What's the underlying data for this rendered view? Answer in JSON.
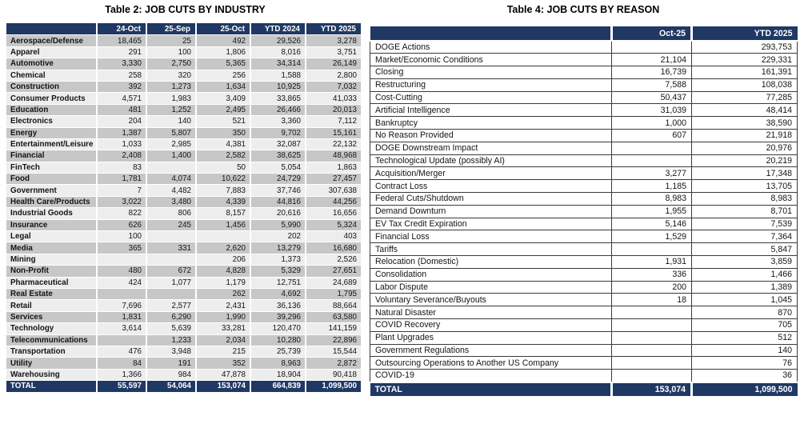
{
  "colors": {
    "header_bg": "#203864",
    "row_stripe_dark": "#c7c7c7",
    "row_stripe_light": "#ededed",
    "grid_line": "#3a3a3a"
  },
  "left_table": {
    "title": "Table 2: JOB CUTS BY INDUSTRY",
    "columns": [
      "",
      "24-Oct",
      "25-Sep",
      "25-Oct",
      "YTD 2024",
      "YTD 2025"
    ],
    "rows": [
      {
        "label": "Aerospace/Defense",
        "values": [
          "18,465",
          "25",
          "492",
          "29,526",
          "3,278"
        ]
      },
      {
        "label": "Apparel",
        "values": [
          "291",
          "100",
          "1,806",
          "8,016",
          "3,751"
        ]
      },
      {
        "label": "Automotive",
        "values": [
          "3,330",
          "2,750",
          "5,365",
          "34,314",
          "26,149"
        ]
      },
      {
        "label": "Chemical",
        "values": [
          "258",
          "320",
          "256",
          "1,588",
          "2,800"
        ]
      },
      {
        "label": "Construction",
        "values": [
          "392",
          "1,273",
          "1,634",
          "10,925",
          "7,032"
        ]
      },
      {
        "label": "Consumer Products",
        "values": [
          "4,571",
          "1,983",
          "3,409",
          "33,865",
          "41,033"
        ]
      },
      {
        "label": "Education",
        "values": [
          "481",
          "1,252",
          "2,495",
          "26,466",
          "20,013"
        ]
      },
      {
        "label": "Electronics",
        "values": [
          "204",
          "140",
          "521",
          "3,360",
          "7,112"
        ]
      },
      {
        "label": "Energy",
        "values": [
          "1,387",
          "5,807",
          "350",
          "9,702",
          "15,161"
        ]
      },
      {
        "label": "Entertainment/Leisure",
        "values": [
          "1,033",
          "2,985",
          "4,381",
          "32,087",
          "22,132"
        ]
      },
      {
        "label": "Financial",
        "values": [
          "2,408",
          "1,400",
          "2,582",
          "38,625",
          "48,968"
        ]
      },
      {
        "label": "FinTech",
        "values": [
          "83",
          "",
          "50",
          "5,054",
          "1,863"
        ]
      },
      {
        "label": "Food",
        "values": [
          "1,781",
          "4,074",
          "10,622",
          "24,729",
          "27,457"
        ]
      },
      {
        "label": "Government",
        "values": [
          "7",
          "4,482",
          "7,883",
          "37,746",
          "307,638"
        ]
      },
      {
        "label": "Health Care/Products",
        "values": [
          "3,022",
          "3,480",
          "4,339",
          "44,816",
          "44,256"
        ]
      },
      {
        "label": "Industrial Goods",
        "values": [
          "822",
          "806",
          "8,157",
          "20,616",
          "16,656"
        ]
      },
      {
        "label": "Insurance",
        "values": [
          "626",
          "245",
          "1,456",
          "5,990",
          "5,324"
        ]
      },
      {
        "label": "Legal",
        "values": [
          "100",
          "",
          "",
          "202",
          "403"
        ]
      },
      {
        "label": "Media",
        "values": [
          "365",
          "331",
          "2,620",
          "13,279",
          "16,680"
        ]
      },
      {
        "label": "Mining",
        "values": [
          "",
          "",
          "206",
          "1,373",
          "2,526"
        ]
      },
      {
        "label": "Non-Profit",
        "values": [
          "480",
          "672",
          "4,828",
          "5,329",
          "27,651"
        ]
      },
      {
        "label": "Pharmaceutical",
        "values": [
          "424",
          "1,077",
          "1,179",
          "12,751",
          "24,689"
        ]
      },
      {
        "label": "Real Estate",
        "values": [
          "",
          "",
          "262",
          "4,692",
          "1,795"
        ]
      },
      {
        "label": "Retail",
        "values": [
          "7,696",
          "2,577",
          "2,431",
          "36,136",
          "88,664"
        ]
      },
      {
        "label": "Services",
        "values": [
          "1,831",
          "6,290",
          "1,990",
          "39,296",
          "63,580"
        ]
      },
      {
        "label": "Technology",
        "values": [
          "3,614",
          "5,639",
          "33,281",
          "120,470",
          "141,159"
        ]
      },
      {
        "label": "Telecommunications",
        "values": [
          "",
          "1,233",
          "2,034",
          "10,280",
          "22,896"
        ]
      },
      {
        "label": "Transportation",
        "values": [
          "476",
          "3,948",
          "215",
          "25,739",
          "15,544"
        ]
      },
      {
        "label": "Utility",
        "values": [
          "84",
          "191",
          "352",
          "8,963",
          "2,872"
        ]
      },
      {
        "label": "Warehousing",
        "values": [
          "1,366",
          "984",
          "47,878",
          "18,904",
          "90,418"
        ]
      }
    ],
    "total": {
      "label": "TOTAL",
      "values": [
        "55,597",
        "54,064",
        "153,074",
        "664,839",
        "1,099,500"
      ]
    }
  },
  "right_table": {
    "title": "Table 4: JOB CUTS BY REASON",
    "columns": [
      "",
      "Oct-25",
      "YTD 2025"
    ],
    "rows": [
      {
        "label": "DOGE Actions",
        "values": [
          "",
          "293,753"
        ]
      },
      {
        "label": "Market/Economic Conditions",
        "values": [
          "21,104",
          "229,331"
        ]
      },
      {
        "label": "Closing",
        "values": [
          "16,739",
          "161,391"
        ]
      },
      {
        "label": "Restructuring",
        "values": [
          "7,588",
          "108,038"
        ]
      },
      {
        "label": "Cost-Cutting",
        "values": [
          "50,437",
          "77,285"
        ]
      },
      {
        "label": "Artificial Intelligence",
        "values": [
          "31,039",
          "48,414"
        ]
      },
      {
        "label": "Bankruptcy",
        "values": [
          "1,000",
          "38,590"
        ]
      },
      {
        "label": "No Reason Provided",
        "values": [
          "607",
          "21,918"
        ]
      },
      {
        "label": "DOGE Downstream Impact",
        "values": [
          "",
          "20,976"
        ]
      },
      {
        "label": "Technological Update (possibly AI)",
        "values": [
          "",
          "20,219"
        ]
      },
      {
        "label": "Acquisition/Merger",
        "values": [
          "3,277",
          "17,348"
        ]
      },
      {
        "label": "Contract Loss",
        "values": [
          "1,185",
          "13,705"
        ]
      },
      {
        "label": "Federal Cuts/Shutdown",
        "values": [
          "8,983",
          "8,983"
        ]
      },
      {
        "label": "Demand Downturn",
        "values": [
          "1,955",
          "8,701"
        ]
      },
      {
        "label": "EV Tax Credit Expiration",
        "values": [
          "5,146",
          "7,539"
        ]
      },
      {
        "label": "Financial Loss",
        "values": [
          "1,529",
          "7,364"
        ]
      },
      {
        "label": "Tariffs",
        "values": [
          "",
          "5,847"
        ]
      },
      {
        "label": "Relocation (Domestic)",
        "values": [
          "1,931",
          "3,859"
        ]
      },
      {
        "label": "Consolidation",
        "values": [
          "336",
          "1,466"
        ]
      },
      {
        "label": "Labor Dispute",
        "values": [
          "200",
          "1,389"
        ]
      },
      {
        "label": "Voluntary Severance/Buyouts",
        "values": [
          "18",
          "1,045"
        ]
      },
      {
        "label": "Natural Disaster",
        "values": [
          "",
          "870"
        ]
      },
      {
        "label": "COVID Recovery",
        "values": [
          "",
          "705"
        ]
      },
      {
        "label": "Plant Upgrades",
        "values": [
          "",
          "512"
        ]
      },
      {
        "label": "Government Regulations",
        "values": [
          "",
          "140"
        ]
      },
      {
        "label": "Outsourcing Operations to Another US Company",
        "values": [
          "",
          "76"
        ]
      },
      {
        "label": "COVID-19",
        "values": [
          "",
          "36"
        ]
      }
    ],
    "total": {
      "label": "TOTAL",
      "values": [
        "153,074",
        "1,099,500"
      ]
    }
  }
}
